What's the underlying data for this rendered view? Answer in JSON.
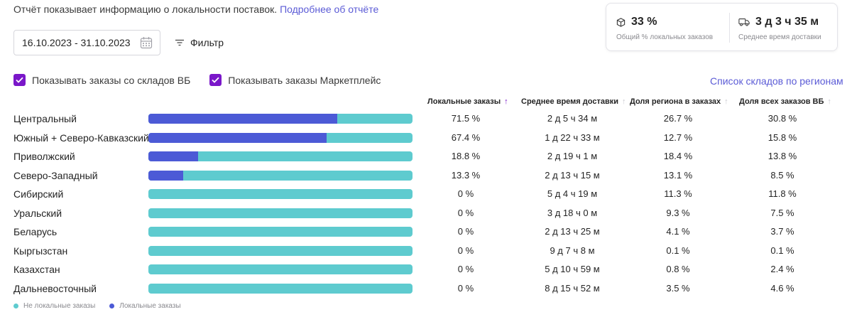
{
  "intro": {
    "text": "Отчёт показывает информацию о локальности поставок.",
    "link": "Подробнее об отчёте"
  },
  "date_range": "16.10.2023 - 31.10.2023",
  "filter_label": "Фильтр",
  "summary": {
    "local_share": {
      "value": "33 %",
      "label": "Общий % локальных заказов"
    },
    "delivery_time": {
      "value": "3 д 3 ч 35 м",
      "label": "Среднее время доставки"
    }
  },
  "checkboxes": [
    {
      "label": "Показывать заказы со складов ВБ",
      "checked": true
    },
    {
      "label": "Показывать заказы Маркетплейс",
      "checked": true
    }
  ],
  "regions_link": "Список складов по регионам",
  "columns": [
    {
      "label": "Локальные заказы",
      "sort": "↑",
      "active": true
    },
    {
      "label": "Среднее время доставки",
      "sort": "↑",
      "active": false
    },
    {
      "label": "Доля региона в заказах",
      "sort": "↑",
      "active": false
    },
    {
      "label": "Доля всех заказов ВБ",
      "sort": "↑",
      "active": false
    }
  ],
  "rows": [
    {
      "region": "Центральный",
      "local": "71.5 %",
      "delivery": "2 д 5 ч 34 м",
      "region_share": "26.7 %",
      "total_share": "30.8 %"
    },
    {
      "region": "Южный + Северо-Кавказский",
      "local": "67.4 %",
      "delivery": "1 д 22 ч 33 м",
      "region_share": "12.7 %",
      "total_share": "15.8 %"
    },
    {
      "region": "Приволжский",
      "local": "18.8 %",
      "delivery": "2 д 19 ч 1 м",
      "region_share": "18.4 %",
      "total_share": "13.8 %"
    },
    {
      "region": "Северо-Западный",
      "local": "13.3 %",
      "delivery": "2 д 13 ч 15 м",
      "region_share": "13.1 %",
      "total_share": "8.5 %"
    },
    {
      "region": "Сибирский",
      "local": "0 %",
      "delivery": "5 д 4 ч 19 м",
      "region_share": "11.3 %",
      "total_share": "11.8 %"
    },
    {
      "region": "Уральский",
      "local": "0 %",
      "delivery": "3 д 18 ч 0 м",
      "region_share": "9.3 %",
      "total_share": "7.5 %"
    },
    {
      "region": "Беларусь",
      "local": "0 %",
      "delivery": "2 д 13 ч 25 м",
      "region_share": "4.1 %",
      "total_share": "3.7 %"
    },
    {
      "region": "Кыргызстан",
      "local": "0 %",
      "delivery": "9 д 7 ч 8 м",
      "region_share": "0.1 %",
      "total_share": "0.1 %"
    },
    {
      "region": "Казахстан",
      "local": "0 %",
      "delivery": "5 д 10 ч 59 м",
      "region_share": "0.8 %",
      "total_share": "2.4 %"
    },
    {
      "region": "Дальневосточный",
      "local": "0 %",
      "delivery": "8 д 15 ч 52 м",
      "region_share": "3.5 %",
      "total_share": "4.6 %"
    }
  ],
  "legend": [
    {
      "label": "Не локальные заказы",
      "color": "#5ecbcf"
    },
    {
      "label": "Локальные заказы",
      "color": "#4c5ad6"
    }
  ],
  "colors": {
    "accent": "#7a17c9",
    "link": "#5b5bd6",
    "local_bar": "#4c5ad6",
    "nonlocal_bar": "#5ecbcf"
  }
}
